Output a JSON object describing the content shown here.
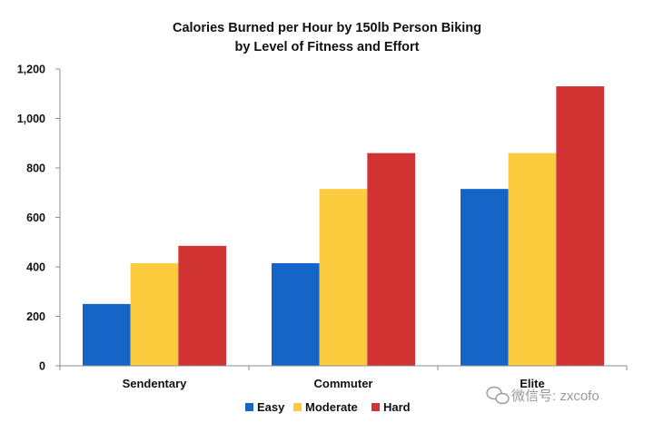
{
  "chart_data": {
    "type": "bar",
    "title": "Calories Burned per Hour by 150lb Person Biking",
    "subtitle": "by Level of Fitness and Effort",
    "xlabel": "",
    "ylabel": "",
    "categories": [
      "Sendentary",
      "Commuter",
      "Elite"
    ],
    "series": [
      {
        "name": "Easy",
        "color": "#1565C8",
        "values": [
          250,
          415,
          715
        ]
      },
      {
        "name": "Moderate",
        "color": "#FDCB3E",
        "values": [
          415,
          715,
          860
        ]
      },
      {
        "name": "Hard",
        "color": "#D13333",
        "values": [
          485,
          860,
          1130
        ]
      }
    ],
    "ylim": [
      0,
      1200
    ],
    "yticks": [
      0,
      200,
      400,
      600,
      800,
      1000,
      1200
    ],
    "ytick_labels": [
      "0",
      "200",
      "400",
      "600",
      "800",
      "1,000",
      "1,200"
    ],
    "grid": false,
    "legend_position": "bottom"
  },
  "watermark": {
    "icon": "wechat-icon",
    "text": "微信号: zxcofo"
  }
}
